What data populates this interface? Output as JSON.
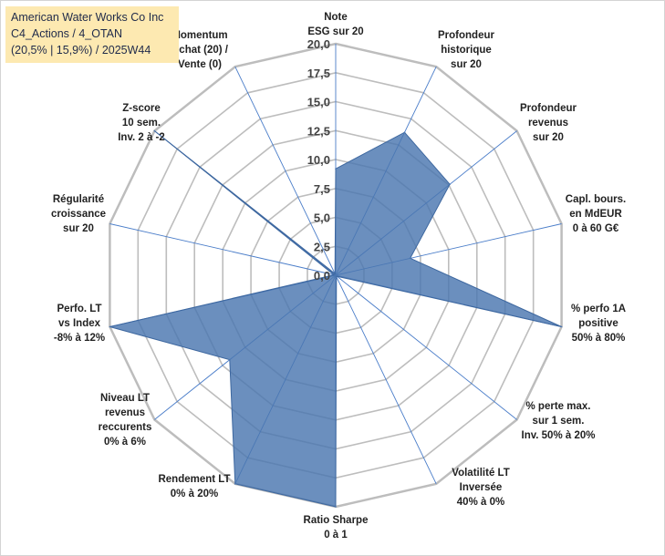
{
  "title_box": {
    "line1": "American Water Works Co Inc",
    "line2": "C4_Actions / 4_OTAN",
    "line3": "(20,5% | 15,9%) / 2025W44"
  },
  "colors": {
    "fill": "#4a76b0",
    "grid": "#bdbdbd",
    "spoke": "#4a7dc9",
    "title_bg": "#fde9b1"
  },
  "chart_data": {
    "type": "radar",
    "rmax": 20,
    "grid_levels": [
      2.5,
      5,
      7.5,
      10,
      12.5,
      15,
      17.5,
      20
    ],
    "tick_labels": [
      "0,0",
      "2,5",
      "5,0",
      "7,5",
      "10,0",
      "12,5",
      "15,0",
      "17,5",
      "20,0"
    ],
    "axes": [
      {
        "label": [
          "Note",
          "ESG sur 20"
        ],
        "value": 9.2
      },
      {
        "label": [
          "Profondeur",
          "historique",
          "sur 20"
        ],
        "value": 13.7
      },
      {
        "label": [
          "Profondeur",
          "revenus",
          "sur 20"
        ],
        "value": 12.6
      },
      {
        "label": [
          "Capl. bours.",
          "en MdEUR",
          "0 à 60 G€"
        ],
        "value": 6.6
      },
      {
        "label": [
          "% perfo 1A",
          "positive",
          "50% à 80%"
        ],
        "value": 20
      },
      {
        "label": [
          "% perte max.",
          "sur 1 sem.",
          "Inv. 50% à 20%"
        ],
        "value": 0
      },
      {
        "label": [
          "Volatilité LT",
          "Inversée",
          "40% à 0%"
        ],
        "value": 0
      },
      {
        "label": [
          "Ratio Sharpe",
          "0 à 1"
        ],
        "value": 20
      },
      {
        "label": [
          "Rendement LT",
          "0% à 20%"
        ],
        "value": 20
      },
      {
        "label": [
          "Niveau LT",
          "revenus",
          "reccurents",
          "0% à 6%"
        ],
        "value": 11.7
      },
      {
        "label": [
          "Perfo. LT",
          "vs Index",
          "-8% à 12%"
        ],
        "value": 20
      },
      {
        "label": [
          "Régularité",
          "croissance",
          "sur 20"
        ],
        "value": 0
      },
      {
        "label": [
          "Z-score",
          "10 sem.",
          "Inv. 2 à -2"
        ],
        "value": 20
      },
      {
        "label": [
          "Momentum",
          "Achat (20) /",
          "Vente (0)"
        ],
        "value": 0
      }
    ]
  }
}
